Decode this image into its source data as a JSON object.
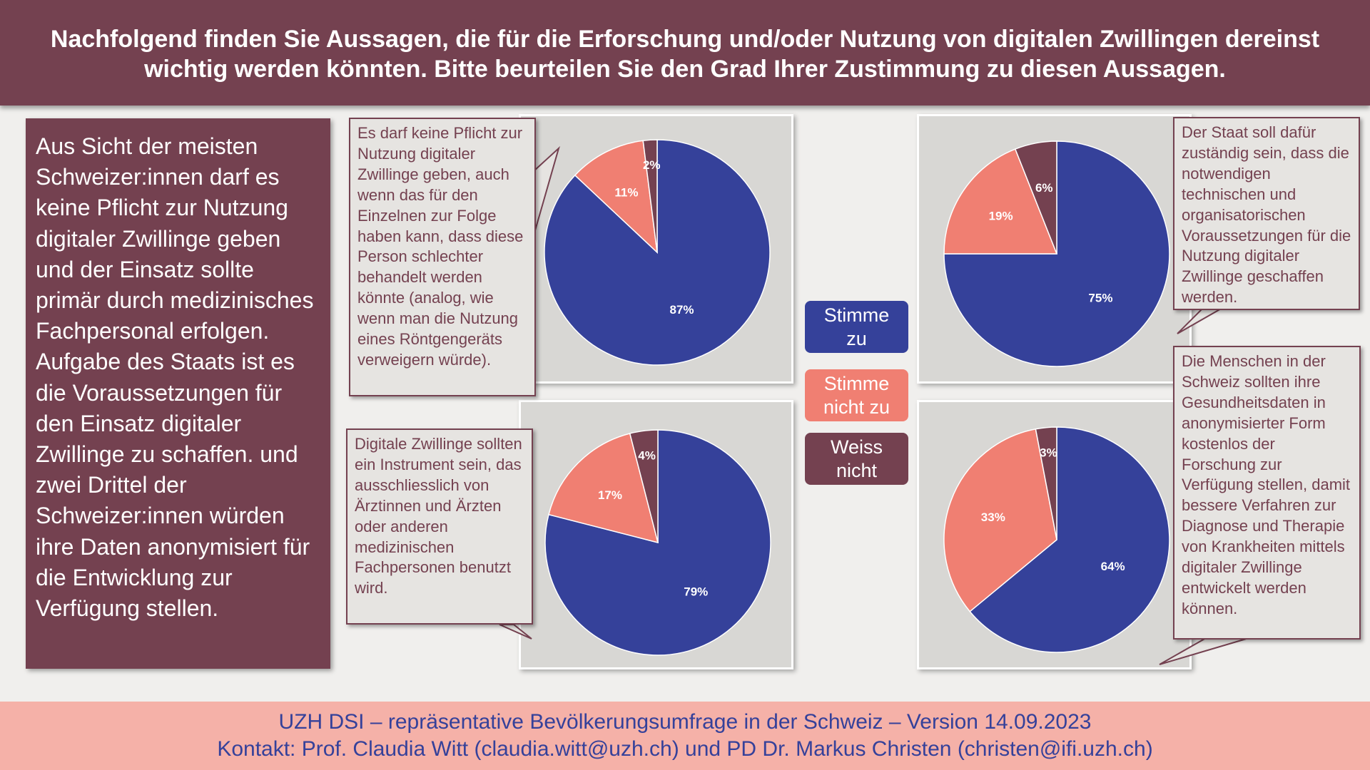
{
  "header": {
    "line1": "Nachfolgend finden Sie Aussagen, die für die Erforschung und/oder Nutzung von digitalen Zwillingen dereinst",
    "line2": "wichtig werden könnten. Bitte beurteilen Sie den Grad Ihrer Zustimmung zu diesen Aussagen."
  },
  "summary": {
    "text": "Aus Sicht der meisten Schweizer:innen darf es keine Pflicht zur Nutzung digitaler Zwillinge geben und der Einsatz sollte primär durch medizinisches Fachpersonal erfolgen. Aufgabe des Staats ist es die Voraussetzungen für den Einsatz digitaler Zwillinge zu schaffen. und zwei Drittel der Schweizer:innen würden ihre Daten anonymisiert für die Entwicklung zur Verfügung stellen."
  },
  "callouts": {
    "top_left": "Es darf keine Pflicht zur Nutzung digitaler Zwillinge geben, auch wenn das für den Einzelnen zur Folge haben kann, dass diese Person schlechter behandelt werden könnte (analog, wie wenn man die Nutzung eines Röntgengeräts verweigern würde).",
    "bottom_left": "Digitale Zwillinge sollten ein Instrument sein, das ausschliesslich von Ärztinnen und Ärzten oder anderen medizinischen Fachpersonen benutzt wird.",
    "top_right": "Der Staat soll dafür zuständig sein, dass die notwendigen technischen und organisatorischen Voraussetzungen für die Nutzung digitaler Zwillinge geschaffen werden.",
    "bottom_right": "Die Menschen in der Schweiz sollten ihre Gesundheitsdaten in anonymisierter Form kostenlos der Forschung zur Verfügung stellen, damit bessere Verfahren zur Diagnose und Therapie von Krankheiten mittels digitaler Zwillinge entwickelt werden können."
  },
  "legend": {
    "items": [
      {
        "label": "Stimme zu",
        "color": "#35419a"
      },
      {
        "label": "Stimme nicht zu",
        "color": "#f07f72"
      },
      {
        "label": "Weiss nicht",
        "color": "#744150"
      }
    ]
  },
  "colors": {
    "header_bg": "#744150",
    "agree": "#35419a",
    "disagree": "#f07f72",
    "dont_know": "#744150",
    "footer_bg": "#f5b1a8",
    "footer_text": "#35419a"
  },
  "chart_data": [
    {
      "type": "pie",
      "id": "top_left",
      "title": "Es darf keine Pflicht zur Nutzung digitaler Zwillinge geben",
      "categories": [
        "Stimme zu",
        "Stimme nicht zu",
        "Weiss nicht"
      ],
      "values": [
        87,
        11,
        2
      ],
      "labels": [
        "87%",
        "11%",
        "2%"
      ]
    },
    {
      "type": "pie",
      "id": "bottom_left",
      "title": "Digitale Zwillinge sollten ein Instrument sein, das ausschliesslich von Fachpersonen benutzt wird",
      "categories": [
        "Stimme zu",
        "Stimme nicht zu",
        "Weiss nicht"
      ],
      "values": [
        79,
        17,
        4
      ],
      "labels": [
        "79%",
        "17%",
        "4%"
      ]
    },
    {
      "type": "pie",
      "id": "top_right",
      "title": "Der Staat soll dafür zuständig sein, dass die Voraussetzungen geschaffen werden",
      "categories": [
        "Stimme zu",
        "Stimme nicht zu",
        "Weiss nicht"
      ],
      "values": [
        75,
        19,
        6
      ],
      "labels": [
        "75%",
        "19%",
        "6%"
      ]
    },
    {
      "type": "pie",
      "id": "bottom_right",
      "title": "Gesundheitsdaten in anonymisierter Form kostenlos der Forschung zur Verfügung stellen",
      "categories": [
        "Stimme zu",
        "Stimme nicht zu",
        "Weiss nicht"
      ],
      "values": [
        64,
        33,
        3
      ],
      "labels": [
        "64%",
        "33%",
        "3%"
      ]
    }
  ],
  "footer": {
    "line1": "UZH DSI – repräsentative Bevölkerungsumfrage in der Schweiz – Version 14.09.2023",
    "line2": "Kontakt: Prof. Claudia Witt (claudia.witt@uzh.ch) und PD Dr. Markus Christen (christen@ifi.uzh.ch)"
  }
}
